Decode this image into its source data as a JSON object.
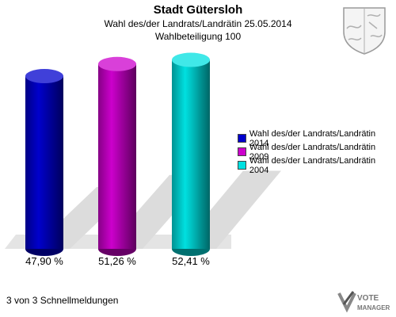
{
  "header": {
    "title": "Stadt Gütersloh",
    "subtitle": "Wahl des/der Landrats/Landrätin 25.05.2014",
    "subtitle2": "Wahlbeteiligung 100"
  },
  "chart_data": {
    "type": "bar",
    "categories": [
      "Wahl des/der Landrats/Landrätin 2014",
      "Wahl des/der Landrats/Landrätin 2009",
      "Wahl des/der Landrats/Landrätin 2004"
    ],
    "values": [
      47.9,
      51.26,
      52.41
    ],
    "value_labels": [
      "47,90 %",
      "51,26 %",
      "52,41 %"
    ],
    "colors": [
      "#0000cc",
      "#cc00cc",
      "#00e0e0"
    ],
    "ylim": [
      0,
      100
    ],
    "legend_position": "right",
    "grid": false
  },
  "footer": {
    "text": "3 von 3 Schnellmeldungen"
  },
  "logo": {
    "brand_text": "VOTE MANAGER",
    "crest_icon": "coat-of-arms-icon"
  }
}
